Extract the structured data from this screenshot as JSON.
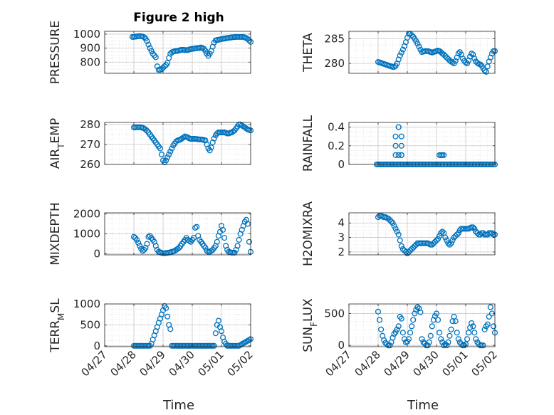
{
  "figure_title": "Figure 2 high",
  "x_label": "Time",
  "x_tick_labels": [
    "04/27",
    "04/28",
    "04/29",
    "04/30",
    "05/01",
    "05/02"
  ],
  "marker_color": "#0072BD",
  "grid_color": "#d9d9d9",
  "chart_data": [
    {
      "type": "scatter",
      "ylabel": "PRESSURE",
      "ylim": [
        720,
        1020
      ],
      "yticks": [
        800,
        900,
        1000
      ],
      "grid": true,
      "x": [
        0.95,
        1.0,
        1.05,
        1.1,
        1.15,
        1.2,
        1.25,
        1.3,
        1.35,
        1.4,
        1.45,
        1.5,
        1.55,
        1.6,
        1.65,
        1.7,
        1.75,
        1.8,
        1.85,
        1.9,
        1.95,
        2.0,
        2.05,
        2.1,
        2.15,
        2.2,
        2.25,
        2.3,
        2.35,
        2.4,
        2.45,
        2.5,
        2.55,
        2.6,
        2.65,
        2.7,
        2.75,
        2.8,
        2.85,
        2.9,
        2.95,
        3.0,
        3.05,
        3.1,
        3.15,
        3.2,
        3.25,
        3.3,
        3.35,
        3.4,
        3.45,
        3.5,
        3.55,
        3.6,
        3.65,
        3.7,
        3.75,
        3.8,
        3.85,
        3.9,
        3.95,
        4.0,
        4.05,
        4.1,
        4.15,
        4.2,
        4.25,
        4.3,
        4.35,
        4.4,
        4.45,
        4.5,
        4.55,
        4.6,
        4.65,
        4.7,
        4.75,
        4.8,
        4.85,
        4.9,
        4.95,
        5.0
      ],
      "y": [
        980,
        980,
        982,
        983,
        985,
        986,
        985,
        983,
        978,
        968,
        950,
        925,
        900,
        880,
        860,
        848,
        835,
        770,
        745,
        745,
        750,
        760,
        770,
        780,
        795,
        830,
        860,
        870,
        875,
        878,
        880,
        880,
        883,
        887,
        888,
        888,
        886,
        886,
        886,
        890,
        893,
        895,
        896,
        898,
        900,
        900,
        902,
        905,
        900,
        895,
        880,
        860,
        845,
        860,
        880,
        910,
        940,
        955,
        958,
        960,
        962,
        965,
        967,
        968,
        970,
        972,
        974,
        975,
        977,
        978,
        979,
        980,
        980,
        980,
        980,
        980,
        980,
        976,
        971,
        965,
        955,
        945
      ]
    },
    {
      "type": "scatter",
      "ylabel": "THETA",
      "ylim": [
        278,
        286.5
      ],
      "yticks": [
        280,
        285
      ],
      "grid": true,
      "x": [
        1.0,
        1.05,
        1.1,
        1.15,
        1.2,
        1.25,
        1.3,
        1.35,
        1.4,
        1.45,
        1.5,
        1.55,
        1.6,
        1.65,
        1.7,
        1.75,
        1.8,
        1.85,
        1.9,
        1.95,
        2.0,
        2.05,
        2.1,
        2.15,
        2.2,
        2.25,
        2.3,
        2.35,
        2.4,
        2.45,
        2.5,
        2.55,
        2.6,
        2.65,
        2.7,
        2.75,
        2.8,
        2.85,
        2.9,
        2.95,
        3.0,
        3.05,
        3.1,
        3.15,
        3.2,
        3.25,
        3.3,
        3.35,
        3.4,
        3.45,
        3.5,
        3.55,
        3.6,
        3.65,
        3.7,
        3.75,
        3.8,
        3.85,
        3.9,
        3.95,
        4.0,
        4.05,
        4.1,
        4.15,
        4.2,
        4.25,
        4.3,
        4.35,
        4.4,
        4.45,
        4.5,
        4.55,
        4.6,
        4.65,
        4.7,
        4.75,
        4.8,
        4.85,
        4.9,
        4.95,
        5.0
      ],
      "y": [
        280.3,
        280.2,
        280.1,
        280.0,
        279.9,
        279.8,
        279.7,
        279.6,
        279.5,
        279.4,
        279.3,
        279.3,
        279.5,
        280.0,
        280.8,
        281.6,
        282.2,
        282.8,
        283.5,
        284.3,
        285.2,
        286.0,
        286.0,
        285.7,
        285.4,
        285.0,
        284.5,
        284.0,
        283.4,
        282.8,
        282.3,
        282.4,
        282.5,
        282.5,
        282.5,
        282.4,
        282.3,
        282.2,
        282.3,
        282.4,
        282.5,
        282.6,
        282.5,
        282.3,
        282.0,
        281.8,
        281.5,
        281.2,
        280.9,
        280.6,
        280.4,
        280.2,
        280.0,
        280.5,
        281.2,
        282.0,
        282.3,
        281.8,
        281.0,
        280.5,
        280.2,
        280.0,
        280.6,
        281.4,
        282.0,
        281.8,
        281.0,
        280.4,
        280.1,
        279.9,
        279.8,
        279.5,
        279.0,
        278.6,
        278.3,
        279.4,
        280.4,
        281.2,
        282.0,
        282.5,
        282.5
      ]
    },
    {
      "type": "scatter",
      "ylabel": "AIR_T_EMP",
      "ylim": [
        260,
        281
      ],
      "yticks": [
        260,
        270,
        280
      ],
      "grid": true,
      "x": [
        1.0,
        1.05,
        1.1,
        1.15,
        1.2,
        1.25,
        1.3,
        1.35,
        1.4,
        1.45,
        1.5,
        1.55,
        1.6,
        1.65,
        1.7,
        1.75,
        1.8,
        1.85,
        1.9,
        1.95,
        2.0,
        2.05,
        2.1,
        2.15,
        2.2,
        2.25,
        2.3,
        2.35,
        2.4,
        2.45,
        2.5,
        2.55,
        2.6,
        2.65,
        2.7,
        2.75,
        2.8,
        2.85,
        2.9,
        2.95,
        3.0,
        3.05,
        3.1,
        3.15,
        3.2,
        3.25,
        3.3,
        3.35,
        3.4,
        3.45,
        3.5,
        3.55,
        3.6,
        3.65,
        3.7,
        3.75,
        3.8,
        3.85,
        3.9,
        3.95,
        4.0,
        4.05,
        4.1,
        4.15,
        4.2,
        4.25,
        4.3,
        4.35,
        4.4,
        4.45,
        4.5,
        4.55,
        4.6,
        4.65,
        4.7,
        4.75,
        4.8,
        4.85,
        4.9,
        4.95,
        5.0
      ],
      "y": [
        278.5,
        278.5,
        278.6,
        278.6,
        278.6,
        278.5,
        278.3,
        278.0,
        277.5,
        276.8,
        276.0,
        275.0,
        274.0,
        273.0,
        272.0,
        271.0,
        270.0,
        269.0,
        268.0,
        265.0,
        262.0,
        261.0,
        262.0,
        263.5,
        265.0,
        266.5,
        268.0,
        269.5,
        270.5,
        271.5,
        272.0,
        272.2,
        272.5,
        273.0,
        273.5,
        274.0,
        273.8,
        273.5,
        273.0,
        272.8,
        272.8,
        272.8,
        272.8,
        272.7,
        272.6,
        272.5,
        272.5,
        272.4,
        272.2,
        272.0,
        270.0,
        268.0,
        267.0,
        268.5,
        271.0,
        273.0,
        274.5,
        275.5,
        276.0,
        276.0,
        276.0,
        276.0,
        276.0,
        275.8,
        275.5,
        275.5,
        275.8,
        276.0,
        276.5,
        277.0,
        278.0,
        279.0,
        280.0,
        280.0,
        279.5,
        279.0,
        278.5,
        278.0,
        277.5,
        277.2,
        277.0
      ]
    },
    {
      "type": "scatter",
      "ylabel": "RAINFALL",
      "ylim": [
        0,
        0.45
      ],
      "yticks": [
        0,
        0.2,
        0.4
      ],
      "grid": true,
      "x": [
        0.95,
        1.0,
        1.05,
        1.1,
        1.15,
        1.2,
        1.25,
        1.3,
        1.35,
        1.4,
        1.45,
        1.5,
        1.55,
        1.6,
        1.65,
        1.7,
        1.75,
        1.8,
        1.85,
        1.9,
        1.95,
        2.0,
        2.05,
        2.1,
        2.15,
        2.2,
        2.25,
        2.3,
        2.35,
        2.4,
        2.45,
        2.5,
        2.55,
        2.6,
        2.65,
        2.7,
        2.75,
        2.8,
        2.85,
        2.9,
        2.95,
        3.0,
        3.05,
        3.1,
        3.15,
        3.2,
        3.25,
        3.3,
        3.35,
        3.4,
        3.45,
        3.5,
        3.55,
        3.6,
        3.65,
        3.7,
        3.75,
        3.8,
        3.85,
        3.9,
        3.95,
        4.0,
        4.05,
        4.1,
        4.15,
        4.2,
        4.25,
        4.3,
        4.35,
        4.4,
        4.45,
        4.5,
        4.55,
        4.6,
        4.65,
        4.7,
        4.75,
        4.8,
        4.85,
        4.9,
        4.95,
        5.0,
        1.6,
        1.6,
        1.6,
        1.7,
        1.7,
        1.7,
        1.8,
        1.8,
        1.8,
        1.8,
        3.1,
        3.15,
        3.2,
        3.25
      ],
      "y": [
        0,
        0,
        0,
        0,
        0,
        0,
        0,
        0,
        0,
        0,
        0,
        0,
        0,
        0,
        0,
        0,
        0,
        0,
        0,
        0,
        0,
        0,
        0,
        0,
        0,
        0,
        0,
        0,
        0,
        0,
        0,
        0,
        0,
        0,
        0,
        0,
        0,
        0,
        0,
        0,
        0,
        0,
        0,
        0,
        0,
        0,
        0,
        0,
        0,
        0,
        0,
        0,
        0,
        0,
        0,
        0,
        0,
        0,
        0,
        0,
        0,
        0,
        0,
        0,
        0,
        0,
        0,
        0,
        0,
        0,
        0,
        0,
        0,
        0,
        0,
        0,
        0,
        0,
        0,
        0,
        0,
        0,
        0.3,
        0.2,
        0.1,
        0.4,
        0.4,
        0.1,
        0.3,
        0.2,
        0.1,
        0.1,
        0.1,
        0.1,
        0.1,
        0.1
      ]
    },
    {
      "type": "scatter",
      "ylabel": "MIXDEPTH",
      "ylim": [
        -50,
        2050
      ],
      "yticks": [
        0,
        1000,
        2000
      ],
      "grid": true,
      "x": [
        1.0,
        1.05,
        1.1,
        1.15,
        1.2,
        1.25,
        1.3,
        1.35,
        1.4,
        1.45,
        1.5,
        1.55,
        1.6,
        1.65,
        1.7,
        1.75,
        1.8,
        1.85,
        1.9,
        1.95,
        2.0,
        2.05,
        2.1,
        2.15,
        2.2,
        2.25,
        2.3,
        2.35,
        2.4,
        2.45,
        2.5,
        2.55,
        2.6,
        2.65,
        2.7,
        2.75,
        2.8,
        2.85,
        2.9,
        2.95,
        3.0,
        3.05,
        3.1,
        3.15,
        3.2,
        3.25,
        3.3,
        3.35,
        3.4,
        3.45,
        3.5,
        3.55,
        3.6,
        3.65,
        3.7,
        3.75,
        3.8,
        3.85,
        3.9,
        3.95,
        4.0,
        4.05,
        4.1,
        4.15,
        4.2,
        4.25,
        4.3,
        4.35,
        4.4,
        4.45,
        4.5,
        4.55,
        4.6,
        4.65,
        4.7,
        4.75,
        4.8,
        4.85,
        4.9,
        4.95,
        5.0
      ],
      "y": [
        850,
        800,
        700,
        550,
        400,
        250,
        150,
        200,
        300,
        500,
        850,
        900,
        800,
        700,
        600,
        400,
        200,
        100,
        80,
        50,
        30,
        30,
        40,
        50,
        60,
        80,
        100,
        120,
        150,
        200,
        250,
        300,
        400,
        500,
        600,
        700,
        800,
        700,
        650,
        600,
        700,
        800,
        1300,
        1350,
        900,
        700,
        600,
        500,
        400,
        300,
        150,
        100,
        100,
        150,
        200,
        300,
        400,
        600,
        900,
        1100,
        1400,
        1200,
        800,
        400,
        200,
        100,
        80,
        60,
        60,
        60,
        200,
        400,
        700,
        1000,
        1200,
        1400,
        1600,
        1700,
        1500,
        600,
        100
      ]
    },
    {
      "type": "scatter",
      "ylabel": "H2OMIXRA",
      "ylim": [
        1.8,
        4.7
      ],
      "yticks": [
        2,
        3,
        4
      ],
      "grid": true,
      "x": [
        1.0,
        1.05,
        1.1,
        1.15,
        1.2,
        1.25,
        1.3,
        1.35,
        1.4,
        1.45,
        1.5,
        1.55,
        1.6,
        1.65,
        1.7,
        1.75,
        1.8,
        1.85,
        1.9,
        1.95,
        2.0,
        2.05,
        2.1,
        2.15,
        2.2,
        2.25,
        2.3,
        2.35,
        2.4,
        2.45,
        2.5,
        2.55,
        2.6,
        2.65,
        2.7,
        2.75,
        2.8,
        2.85,
        2.9,
        2.95,
        3.0,
        3.05,
        3.1,
        3.15,
        3.2,
        3.25,
        3.3,
        3.35,
        3.4,
        3.45,
        3.5,
        3.55,
        3.6,
        3.65,
        3.7,
        3.75,
        3.8,
        3.85,
        3.9,
        3.95,
        4.0,
        4.05,
        4.1,
        4.15,
        4.2,
        4.25,
        4.3,
        4.35,
        4.4,
        4.45,
        4.5,
        4.55,
        4.6,
        4.65,
        4.7,
        4.75,
        4.8,
        4.85,
        4.9,
        4.95,
        5.0
      ],
      "y": [
        4.4,
        4.5,
        4.5,
        4.45,
        4.4,
        4.4,
        4.35,
        4.3,
        4.2,
        4.1,
        4.0,
        3.8,
        3.6,
        3.4,
        3.2,
        2.8,
        2.4,
        2.2,
        2.1,
        2.0,
        1.9,
        2.0,
        2.1,
        2.2,
        2.3,
        2.4,
        2.5,
        2.6,
        2.6,
        2.6,
        2.6,
        2.6,
        2.6,
        2.6,
        2.6,
        2.55,
        2.5,
        2.5,
        2.6,
        2.7,
        2.8,
        2.9,
        3.1,
        3.3,
        3.4,
        3.3,
        3.0,
        2.8,
        2.6,
        2.5,
        2.6,
        2.8,
        3.0,
        3.1,
        3.2,
        3.3,
        3.5,
        3.6,
        3.6,
        3.6,
        3.6,
        3.6,
        3.6,
        3.65,
        3.7,
        3.7,
        3.6,
        3.4,
        3.3,
        3.2,
        3.2,
        3.3,
        3.3,
        3.2,
        3.2,
        3.2,
        3.3,
        3.3,
        3.3,
        3.2,
        3.2
      ]
    },
    {
      "type": "scatter",
      "ylabel": "TERR_M_SL",
      "ylim": [
        -20,
        1000
      ],
      "yticks": [
        0,
        500,
        1000
      ],
      "grid": true,
      "x": [
        1.0,
        1.05,
        1.1,
        1.15,
        1.2,
        1.25,
        1.3,
        1.35,
        1.4,
        1.45,
        1.5,
        1.55,
        1.6,
        1.65,
        1.7,
        1.75,
        1.8,
        1.85,
        1.9,
        1.95,
        2.0,
        2.05,
        2.1,
        2.15,
        2.2,
        2.25,
        2.3,
        2.35,
        2.4,
        2.45,
        2.5,
        2.55,
        2.6,
        2.65,
        2.7,
        2.75,
        2.8,
        2.85,
        2.9,
        2.95,
        3.0,
        3.05,
        3.1,
        3.15,
        3.2,
        3.25,
        3.3,
        3.35,
        3.4,
        3.45,
        3.5,
        3.55,
        3.6,
        3.65,
        3.7,
        3.75,
        3.8,
        3.85,
        3.9,
        3.95,
        4.0,
        4.05,
        4.1,
        4.15,
        4.2,
        4.25,
        4.3,
        4.35,
        4.4,
        4.45,
        4.5,
        4.55,
        4.6,
        4.65,
        4.7,
        4.75,
        4.8,
        4.85,
        4.9,
        4.95,
        5.0
      ],
      "y": [
        0,
        0,
        0,
        0,
        0,
        0,
        0,
        0,
        0,
        0,
        0,
        0,
        50,
        150,
        250,
        350,
        450,
        550,
        650,
        750,
        850,
        950,
        900,
        700,
        500,
        400,
        0,
        0,
        0,
        0,
        0,
        0,
        0,
        0,
        0,
        0,
        0,
        0,
        0,
        0,
        0,
        0,
        0,
        0,
        0,
        0,
        0,
        0,
        0,
        0,
        0,
        0,
        0,
        0,
        0,
        0,
        300,
        500,
        600,
        450,
        350,
        200,
        100,
        50,
        0,
        0,
        0,
        0,
        0,
        0,
        0,
        0,
        0,
        20,
        40,
        60,
        80,
        100,
        120,
        140,
        160
      ]
    },
    {
      "type": "scatter",
      "ylabel": "SUN_F_LUX",
      "ylim": [
        -20,
        650
      ],
      "yticks": [
        0,
        500
      ],
      "grid": true,
      "x": [
        1.0,
        1.05,
        1.1,
        1.15,
        1.2,
        1.25,
        1.3,
        1.35,
        1.4,
        1.45,
        1.5,
        1.55,
        1.6,
        1.65,
        1.7,
        1.75,
        1.8,
        1.85,
        1.9,
        1.95,
        2.0,
        2.05,
        2.1,
        2.15,
        2.2,
        2.25,
        2.3,
        2.35,
        2.4,
        2.45,
        2.5,
        2.55,
        2.6,
        2.65,
        2.7,
        2.75,
        2.8,
        2.85,
        2.9,
        2.95,
        3.0,
        3.05,
        3.1,
        3.15,
        3.2,
        3.25,
        3.3,
        3.35,
        3.4,
        3.45,
        3.5,
        3.55,
        3.6,
        3.65,
        3.7,
        3.75,
        3.8,
        3.85,
        3.9,
        3.95,
        4.0,
        4.05,
        4.1,
        4.15,
        4.2,
        4.25,
        4.3,
        4.35,
        4.4,
        4.45,
        4.5,
        4.55,
        4.6,
        4.65,
        4.7,
        4.75,
        4.8,
        4.85,
        4.9,
        4.95,
        5.0
      ],
      "y": [
        530,
        400,
        250,
        150,
        80,
        40,
        20,
        0,
        0,
        50,
        120,
        180,
        210,
        250,
        300,
        450,
        420,
        200,
        100,
        50,
        60,
        100,
        200,
        300,
        400,
        500,
        560,
        600,
        580,
        520,
        100,
        50,
        30,
        0,
        0,
        50,
        150,
        300,
        400,
        460,
        500,
        400,
        200,
        100,
        50,
        0,
        20,
        0,
        50,
        150,
        250,
        380,
        450,
        380,
        200,
        100,
        50,
        20,
        0,
        0,
        20,
        100,
        200,
        280,
        350,
        300,
        200,
        100,
        50,
        20,
        0,
        0,
        0,
        250,
        300,
        330,
        450,
        600,
        500,
        300,
        200
      ]
    }
  ]
}
